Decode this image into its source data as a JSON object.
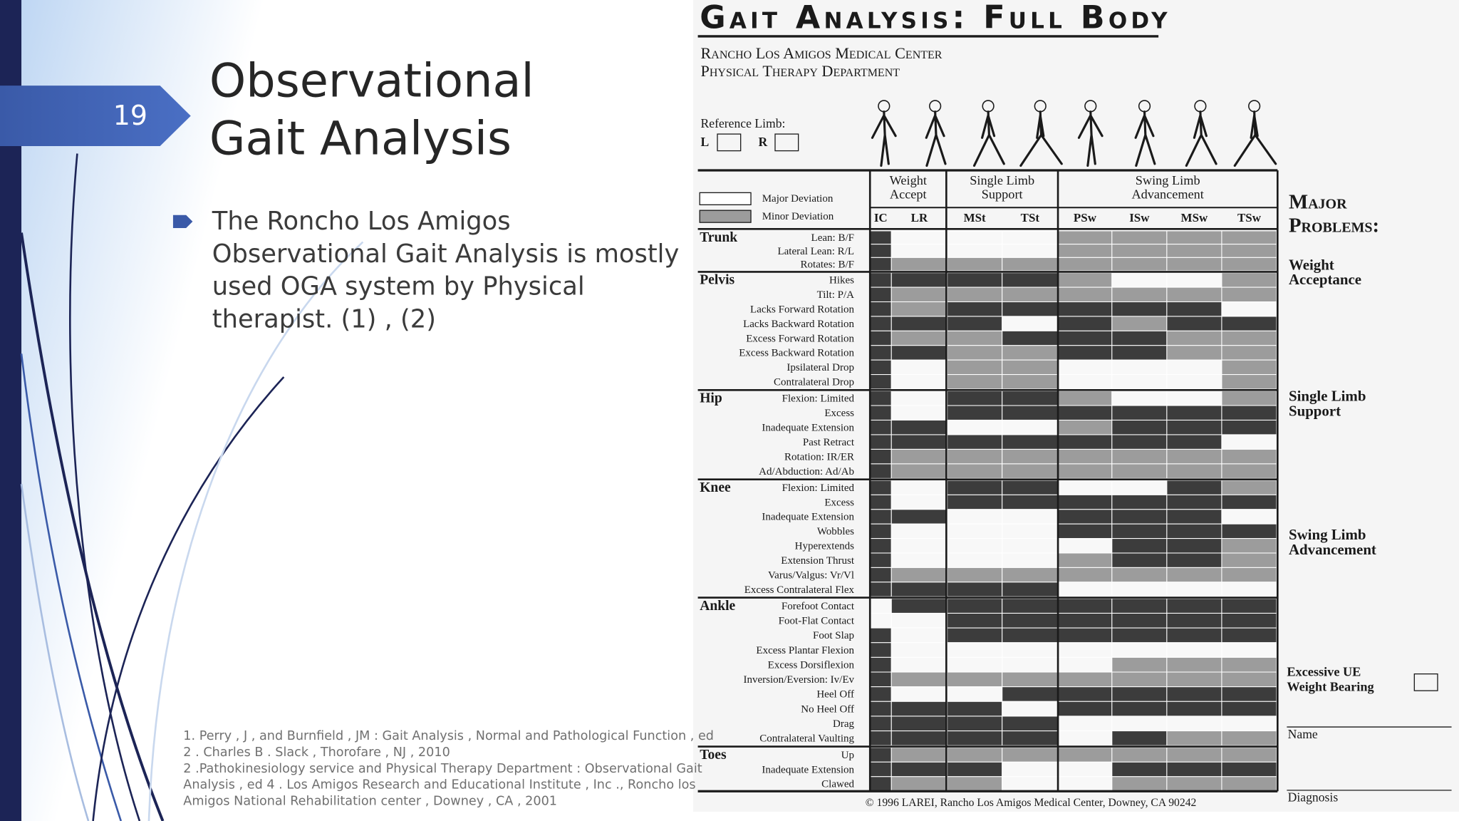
{
  "slide": {
    "number": "19",
    "title": [
      "Observational",
      "Gait Analysis"
    ],
    "bullet": [
      "The Roncho Los Amigos",
      "Observational Gait Analysis is mostly",
      "used OGA system by Physical",
      "therapist. (1) , (2)"
    ],
    "references": [
      "1. Perry , J , and Burnfield , JM : Gait Analysis , Normal and Pathological Function , ed",
      "2 . Charles B . Slack , Thorofare , NJ , 2010",
      "2 .Pathokinesiology service and Physical Therapy Department : Observational Gait",
      "Analysis , ed 4 . Los Amigos Research and Educational Institute , Inc ., Roncho los",
      "Amigos National Rehabilitation center , Downey , CA , 2001"
    ]
  },
  "form": {
    "title": "Gait Analysis: Full Body",
    "subtitle": [
      "Rancho Los Amigos Medical Center",
      "Physical Therapy Department"
    ],
    "reference_limb": "Reference Limb:",
    "limbs": [
      "L",
      "R"
    ],
    "legend": [
      "Major Deviation",
      "Minor Deviation"
    ],
    "phase_groups": [
      {
        "label": [
          "Weight",
          "Accept"
        ],
        "phases": [
          "IC",
          "LR"
        ]
      },
      {
        "label": [
          "Single Limb",
          "Support"
        ],
        "phases": [
          "MSt",
          "TSt"
        ]
      },
      {
        "label": [
          "Swing Limb",
          "Advancement"
        ],
        "phases": [
          "PSw",
          "ISw",
          "MSw",
          "TSw"
        ]
      }
    ],
    "sections": [
      {
        "name": "Trunk",
        "rows": [
          "Lean: B/F",
          "Lateral Lean: R/L",
          "Rotates: B/F"
        ]
      },
      {
        "name": "Pelvis",
        "rows": [
          "Hikes",
          "Tilt: P/A",
          "Lacks Forward Rotation",
          "Lacks Backward Rotation",
          "Excess Forward Rotation",
          "Excess Backward Rotation",
          "Ipsilateral  Drop",
          "Contralateral  Drop"
        ]
      },
      {
        "name": "Hip",
        "rows": [
          "Flexion:  Limited",
          "Excess",
          "Inadequate Extension",
          "Past Retract",
          "Rotation:  IR/ER",
          "Ad/Abduction:  Ad/Ab"
        ]
      },
      {
        "name": "Knee",
        "rows": [
          "Flexion: Limited",
          "Excess",
          "Inadequate Extension",
          "Wobbles",
          "Hyperextends",
          "Extension Thrust",
          "Varus/Valgus: Vr/Vl",
          "Excess Contralateral Flex"
        ]
      },
      {
        "name": "Ankle",
        "rows": [
          "Forefoot Contact",
          "Foot-Flat Contact",
          "Foot Slap",
          "Excess Plantar Flexion",
          "Excess Dorsiflexion",
          "Inversion/Eversion: Iv/Ev",
          "Heel Off",
          "No Heel Off",
          "Drag",
          "Contralateral Vaulting"
        ]
      },
      {
        "name": "Toes",
        "rows": [
          "Up",
          "Inadequate Extension",
          "Clawed"
        ]
      }
    ],
    "major_problems": {
      "title": [
        "Major",
        "Problems:"
      ],
      "items": [
        [
          "Weight",
          "Acceptance"
        ],
        [
          "Single Limb",
          "Support"
        ],
        [
          "Swing Limb",
          "Advancement"
        ]
      ]
    },
    "excessive_ue": [
      "Excessive UE",
      "Weight Bearing"
    ],
    "name_label": "Name",
    "diagnosis_label": "Diagnosis",
    "copyright": "©  1996 LAREI, Rancho Los Amigos Medical Center, Downey, CA  90242"
  }
}
